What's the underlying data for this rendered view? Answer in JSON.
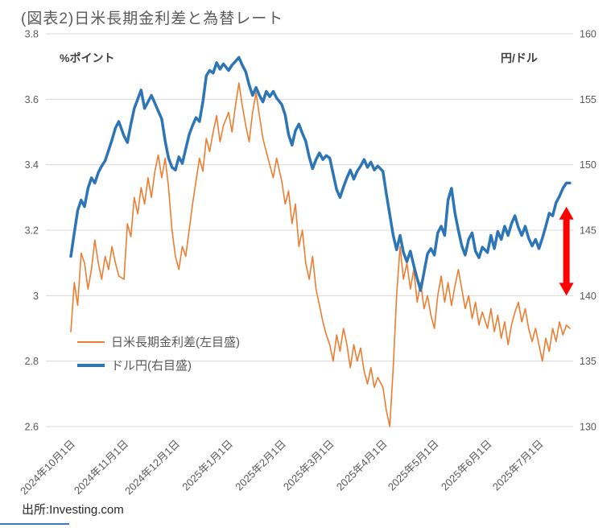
{
  "title": "(図表2)日米長期金利差と為替レート",
  "source_text": "出所:Investing.com",
  "chart_data": {
    "type": "line",
    "title": "(図表2)日米長期金利差と為替レート",
    "grid": true,
    "legend_position": "inside-left-bottom",
    "left_axis": {
      "label": "%ポイント",
      "range": [
        2.6,
        3.8
      ],
      "ticks": [
        "3.8",
        "3.6",
        "3.4",
        "3.2",
        "3",
        "2.8",
        "2.6"
      ]
    },
    "right_axis": {
      "label": "円/ドル",
      "range": [
        130,
        160
      ],
      "ticks": [
        "160",
        "155",
        "150",
        "145",
        "140",
        "135",
        "130"
      ]
    },
    "x_axis": {
      "start_date": "2024-10-01",
      "span_days": 292,
      "ticks": [
        {
          "day": 0,
          "label": "2024年10月1日"
        },
        {
          "day": 31,
          "label": "2024年11月1日"
        },
        {
          "day": 61,
          "label": "2024年12月1日"
        },
        {
          "day": 92,
          "label": "2025年1月1日"
        },
        {
          "day": 123,
          "label": "2025年2月1日"
        },
        {
          "day": 151,
          "label": "2025年3月1日"
        },
        {
          "day": 182,
          "label": "2025年4月1日"
        },
        {
          "day": 212,
          "label": "2025年5月1日"
        },
        {
          "day": 243,
          "label": "2025年6月1日"
        },
        {
          "day": 273,
          "label": "2025年7月1日"
        }
      ]
    },
    "series": [
      {
        "name": "日米長期金利差(左目盛)",
        "axis": "left",
        "color": "#ED7D31",
        "width": 1.6,
        "points": [
          [
            0,
            2.89
          ],
          [
            2,
            3.04
          ],
          [
            4,
            2.97
          ],
          [
            6,
            3.13
          ],
          [
            8,
            3.1
          ],
          [
            10,
            3.02
          ],
          [
            12,
            3.08
          ],
          [
            14,
            3.17
          ],
          [
            16,
            3.1
          ],
          [
            18,
            3.05
          ],
          [
            20,
            3.12
          ],
          [
            22,
            3.08
          ],
          [
            24,
            3.15
          ],
          [
            26,
            3.1
          ],
          [
            28,
            3.06
          ],
          [
            31,
            3.05
          ],
          [
            33,
            3.22
          ],
          [
            35,
            3.18
          ],
          [
            37,
            3.3
          ],
          [
            39,
            3.25
          ],
          [
            41,
            3.33
          ],
          [
            43,
            3.28
          ],
          [
            45,
            3.36
          ],
          [
            47,
            3.3
          ],
          [
            49,
            3.38
          ],
          [
            51,
            3.43
          ],
          [
            53,
            3.36
          ],
          [
            55,
            3.42
          ],
          [
            57,
            3.33
          ],
          [
            59,
            3.2
          ],
          [
            61,
            3.12
          ],
          [
            63,
            3.08
          ],
          [
            65,
            3.15
          ],
          [
            67,
            3.12
          ],
          [
            69,
            3.2
          ],
          [
            71,
            3.28
          ],
          [
            73,
            3.35
          ],
          [
            75,
            3.42
          ],
          [
            77,
            3.38
          ],
          [
            79,
            3.48
          ],
          [
            81,
            3.44
          ],
          [
            83,
            3.5
          ],
          [
            85,
            3.55
          ],
          [
            87,
            3.47
          ],
          [
            89,
            3.52
          ],
          [
            92,
            3.56
          ],
          [
            94,
            3.5
          ],
          [
            96,
            3.58
          ],
          [
            98,
            3.65
          ],
          [
            100,
            3.58
          ],
          [
            102,
            3.52
          ],
          [
            104,
            3.47
          ],
          [
            106,
            3.56
          ],
          [
            108,
            3.62
          ],
          [
            110,
            3.55
          ],
          [
            112,
            3.48
          ],
          [
            114,
            3.44
          ],
          [
            116,
            3.4
          ],
          [
            118,
            3.36
          ],
          [
            120,
            3.42
          ],
          [
            123,
            3.35
          ],
          [
            125,
            3.28
          ],
          [
            127,
            3.32
          ],
          [
            129,
            3.22
          ],
          [
            131,
            3.28
          ],
          [
            133,
            3.15
          ],
          [
            135,
            3.2
          ],
          [
            137,
            3.1
          ],
          [
            139,
            3.05
          ],
          [
            141,
            3.12
          ],
          [
            143,
            3.02
          ],
          [
            145,
            2.97
          ],
          [
            147,
            2.92
          ],
          [
            149,
            2.88
          ],
          [
            151,
            2.85
          ],
          [
            153,
            2.8
          ],
          [
            155,
            2.88
          ],
          [
            157,
            2.83
          ],
          [
            159,
            2.9
          ],
          [
            161,
            2.85
          ],
          [
            163,
            2.78
          ],
          [
            165,
            2.85
          ],
          [
            167,
            2.8
          ],
          [
            169,
            2.84
          ],
          [
            171,
            2.77
          ],
          [
            173,
            2.73
          ],
          [
            175,
            2.78
          ],
          [
            177,
            2.72
          ],
          [
            179,
            2.75
          ],
          [
            182,
            2.72
          ],
          [
            184,
            2.65
          ],
          [
            186,
            2.6
          ],
          [
            188,
            2.78
          ],
          [
            190,
            3.0
          ],
          [
            192,
            3.15
          ],
          [
            194,
            3.05
          ],
          [
            196,
            3.1
          ],
          [
            198,
            3.02
          ],
          [
            200,
            3.08
          ],
          [
            202,
            2.98
          ],
          [
            204,
            3.04
          ],
          [
            206,
            2.96
          ],
          [
            208,
            3.0
          ],
          [
            210,
            2.94
          ],
          [
            212,
            2.9
          ],
          [
            214,
            3.0
          ],
          [
            216,
            3.06
          ],
          [
            218,
            2.98
          ],
          [
            220,
            3.04
          ],
          [
            222,
            2.97
          ],
          [
            224,
            3.03
          ],
          [
            226,
            3.08
          ],
          [
            228,
            3.02
          ],
          [
            230,
            2.96
          ],
          [
            232,
            3.0
          ],
          [
            234,
            2.93
          ],
          [
            236,
            2.98
          ],
          [
            238,
            2.91
          ],
          [
            240,
            2.95
          ],
          [
            243,
            2.9
          ],
          [
            245,
            2.96
          ],
          [
            247,
            2.89
          ],
          [
            249,
            2.94
          ],
          [
            251,
            2.87
          ],
          [
            253,
            2.92
          ],
          [
            255,
            2.85
          ],
          [
            257,
            2.91
          ],
          [
            259,
            2.95
          ],
          [
            261,
            2.98
          ],
          [
            263,
            2.92
          ],
          [
            265,
            2.96
          ],
          [
            267,
            2.9
          ],
          [
            269,
            2.86
          ],
          [
            271,
            2.9
          ],
          [
            273,
            2.85
          ],
          [
            275,
            2.8
          ],
          [
            277,
            2.87
          ],
          [
            279,
            2.83
          ],
          [
            281,
            2.9
          ],
          [
            283,
            2.86
          ],
          [
            285,
            2.92
          ],
          [
            287,
            2.88
          ],
          [
            289,
            2.91
          ],
          [
            291,
            2.9
          ]
        ]
      },
      {
        "name": "ドル円(右目盛)",
        "axis": "right",
        "color": "#2E75B6",
        "width": 3.5,
        "points": [
          [
            0,
            143.0
          ],
          [
            2,
            144.8
          ],
          [
            4,
            146.5
          ],
          [
            6,
            147.3
          ],
          [
            8,
            146.8
          ],
          [
            10,
            148.2
          ],
          [
            12,
            149.0
          ],
          [
            14,
            148.6
          ],
          [
            16,
            149.4
          ],
          [
            18,
            149.9
          ],
          [
            20,
            150.3
          ],
          [
            22,
            151.1
          ],
          [
            24,
            151.9
          ],
          [
            26,
            152.8
          ],
          [
            28,
            153.3
          ],
          [
            31,
            152.2
          ],
          [
            33,
            151.7
          ],
          [
            35,
            153.1
          ],
          [
            37,
            154.3
          ],
          [
            39,
            155.0
          ],
          [
            41,
            155.7
          ],
          [
            43,
            154.3
          ],
          [
            45,
            154.8
          ],
          [
            47,
            155.3
          ],
          [
            49,
            154.7
          ],
          [
            51,
            154.1
          ],
          [
            53,
            153.5
          ],
          [
            55,
            151.8
          ],
          [
            57,
            150.5
          ],
          [
            59,
            149.8
          ],
          [
            61,
            149.6
          ],
          [
            63,
            150.6
          ],
          [
            65,
            150.1
          ],
          [
            67,
            151.2
          ],
          [
            69,
            152.3
          ],
          [
            71,
            153.0
          ],
          [
            73,
            153.6
          ],
          [
            75,
            153.3
          ],
          [
            77,
            154.8
          ],
          [
            79,
            156.8
          ],
          [
            81,
            157.2
          ],
          [
            83,
            157.0
          ],
          [
            85,
            157.8
          ],
          [
            87,
            157.3
          ],
          [
            89,
            157.7
          ],
          [
            92,
            157.2
          ],
          [
            94,
            157.6
          ],
          [
            96,
            157.9
          ],
          [
            98,
            158.2
          ],
          [
            100,
            157.6
          ],
          [
            102,
            157.1
          ],
          [
            104,
            156.1
          ],
          [
            106,
            155.3
          ],
          [
            108,
            155.9
          ],
          [
            110,
            155.3
          ],
          [
            112,
            154.8
          ],
          [
            114,
            155.6
          ],
          [
            116,
            155.2
          ],
          [
            118,
            155.6
          ],
          [
            120,
            155.1
          ],
          [
            123,
            154.6
          ],
          [
            125,
            153.8
          ],
          [
            127,
            152.3
          ],
          [
            129,
            151.5
          ],
          [
            131,
            152.6
          ],
          [
            133,
            153.1
          ],
          [
            135,
            152.4
          ],
          [
            137,
            151.8
          ],
          [
            139,
            150.6
          ],
          [
            141,
            149.7
          ],
          [
            143,
            150.4
          ],
          [
            145,
            150.9
          ],
          [
            147,
            150.4
          ],
          [
            149,
            150.7
          ],
          [
            151,
            150.5
          ],
          [
            153,
            149.3
          ],
          [
            155,
            148.1
          ],
          [
            157,
            147.5
          ],
          [
            159,
            148.3
          ],
          [
            161,
            149.0
          ],
          [
            163,
            149.6
          ],
          [
            165,
            148.9
          ],
          [
            167,
            149.5
          ],
          [
            169,
            149.9
          ],
          [
            171,
            150.4
          ],
          [
            173,
            149.8
          ],
          [
            175,
            150.2
          ],
          [
            177,
            149.6
          ],
          [
            179,
            149.9
          ],
          [
            182,
            149.5
          ],
          [
            184,
            147.8
          ],
          [
            186,
            146.2
          ],
          [
            188,
            144.6
          ],
          [
            190,
            143.5
          ],
          [
            192,
            144.6
          ],
          [
            194,
            143.3
          ],
          [
            196,
            142.6
          ],
          [
            198,
            143.4
          ],
          [
            200,
            142.3
          ],
          [
            202,
            141.3
          ],
          [
            204,
            140.4
          ],
          [
            206,
            141.8
          ],
          [
            208,
            143.2
          ],
          [
            210,
            143.6
          ],
          [
            212,
            143.1
          ],
          [
            214,
            144.8
          ],
          [
            216,
            145.3
          ],
          [
            218,
            144.6
          ],
          [
            220,
            147.3
          ],
          [
            222,
            148.2
          ],
          [
            224,
            146.3
          ],
          [
            226,
            145.0
          ],
          [
            228,
            143.8
          ],
          [
            230,
            143.1
          ],
          [
            232,
            144.3
          ],
          [
            234,
            144.8
          ],
          [
            236,
            143.4
          ],
          [
            238,
            142.9
          ],
          [
            240,
            143.7
          ],
          [
            243,
            143.3
          ],
          [
            245,
            144.6
          ],
          [
            247,
            143.6
          ],
          [
            249,
            144.9
          ],
          [
            251,
            144.3
          ],
          [
            253,
            145.3
          ],
          [
            255,
            144.6
          ],
          [
            257,
            145.5
          ],
          [
            259,
            146.1
          ],
          [
            261,
            145.2
          ],
          [
            263,
            144.6
          ],
          [
            265,
            145.3
          ],
          [
            267,
            144.4
          ],
          [
            269,
            143.8
          ],
          [
            271,
            144.3
          ],
          [
            273,
            143.6
          ],
          [
            275,
            144.4
          ],
          [
            277,
            145.3
          ],
          [
            279,
            146.3
          ],
          [
            281,
            146.1
          ],
          [
            283,
            147.1
          ],
          [
            285,
            147.6
          ],
          [
            287,
            148.2
          ],
          [
            289,
            148.6
          ],
          [
            291,
            148.6
          ]
        ]
      }
    ],
    "annotation_arrow": {
      "color": "#FF0000",
      "axis": "right",
      "day": 289,
      "from_value": 146.8,
      "to_value": 140.0
    }
  }
}
